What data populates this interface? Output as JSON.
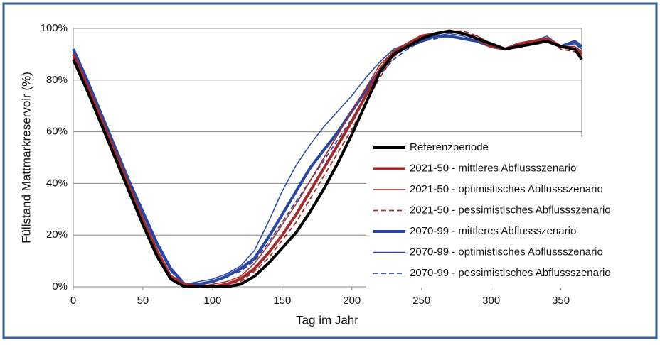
{
  "chart_data": {
    "type": "line",
    "ylabel": "Füllstand Mattmarkreservoir (%)",
    "xlabel": "Tag im Jahr",
    "x": [
      0,
      10,
      20,
      30,
      40,
      50,
      60,
      70,
      80,
      90,
      100,
      110,
      120,
      130,
      140,
      150,
      160,
      170,
      180,
      190,
      200,
      210,
      220,
      230,
      240,
      250,
      260,
      270,
      280,
      290,
      300,
      310,
      320,
      330,
      340,
      350,
      360,
      365
    ],
    "xlim": [
      0,
      365
    ],
    "xticks": [
      0,
      50,
      100,
      150,
      200,
      250,
      300,
      350
    ],
    "ylim": [
      0,
      100
    ],
    "yticks": [
      {
        "value": 0,
        "label": "0%"
      },
      {
        "value": 20,
        "label": "20%"
      },
      {
        "value": 40,
        "label": "40%"
      },
      {
        "value": 60,
        "label": "60%"
      },
      {
        "value": 80,
        "label": "80%"
      },
      {
        "value": 100,
        "label": "100%"
      }
    ],
    "grid": true,
    "legend": "right",
    "series": [
      {
        "name": "Referenzperiode",
        "color": "#000000",
        "line_width": 4,
        "line_style": "solid",
        "values": [
          88,
          76,
          63,
          50,
          37,
          24,
          12,
          3,
          0,
          0,
          0,
          0,
          1,
          4,
          9,
          15,
          21,
          29,
          38,
          48,
          59,
          71,
          83,
          90,
          93,
          96,
          98,
          99,
          98,
          96,
          94,
          92,
          93,
          94,
          95,
          93,
          92,
          88
        ]
      },
      {
        "name": "2021-50 - mittleres Abflussszenario",
        "color": "#a32a2a",
        "line_width": 4,
        "line_style": "solid",
        "values": [
          90,
          78,
          65,
          52,
          39,
          26,
          14,
          4,
          1,
          0,
          0,
          1,
          3,
          7,
          13,
          20,
          28,
          37,
          46,
          55,
          64,
          74,
          84,
          91,
          94,
          97,
          98,
          99,
          98,
          96,
          93,
          92,
          94,
          95,
          96,
          93,
          92,
          90
        ]
      },
      {
        "name": "2021-50 - optimistisches Abflussszenario",
        "color": "#a32a2a",
        "line_width": 1.5,
        "line_style": "solid",
        "values": [
          89,
          77,
          64,
          51,
          38,
          25,
          13,
          4,
          1,
          0,
          1,
          2,
          4,
          9,
          16,
          24,
          32,
          41,
          50,
          59,
          68,
          77,
          86,
          91,
          94,
          97,
          98,
          99,
          98,
          97,
          94,
          92,
          94,
          95,
          96,
          93,
          93,
          91
        ]
      },
      {
        "name": "2021-50 - pessimistisches Abflussszenario",
        "color": "#a32a2a",
        "line_width": 1.8,
        "line_style": "dashed",
        "values": [
          89,
          77,
          64,
          51,
          38,
          25,
          13,
          4,
          1,
          0,
          0,
          1,
          2,
          6,
          11,
          18,
          25,
          34,
          43,
          52,
          61,
          71,
          81,
          89,
          93,
          96,
          98,
          99,
          99,
          97,
          94,
          92,
          93,
          95,
          96,
          92,
          91,
          89
        ]
      },
      {
        "name": "2070-99 - mittleres Abflussszenario",
        "color": "#2a46a3",
        "line_width": 4,
        "line_style": "solid",
        "values": [
          92,
          80,
          67,
          54,
          41,
          29,
          17,
          7,
          1,
          1,
          2,
          4,
          7,
          11,
          19,
          28,
          37,
          46,
          53,
          60,
          68,
          76,
          84,
          90,
          93,
          95,
          97,
          97,
          96,
          95,
          93,
          92,
          94,
          95,
          96,
          93,
          95,
          93
        ]
      },
      {
        "name": "2070-99 - optimistisches Abflussszenario",
        "color": "#2a46a3",
        "line_width": 1.5,
        "line_style": "solid",
        "values": [
          91,
          79,
          66,
          53,
          40,
          28,
          16,
          6,
          1,
          2,
          3,
          5,
          8,
          14,
          25,
          37,
          47,
          55,
          62,
          68,
          74,
          81,
          87,
          92,
          94,
          96,
          97,
          98,
          97,
          95,
          93,
          92,
          94,
          95,
          97,
          93,
          94,
          92
        ]
      },
      {
        "name": "2070-99 - pessimistisches Abflussszenario",
        "color": "#2a46a3",
        "line_width": 1.8,
        "line_style": "dashed",
        "values": [
          91,
          79,
          66,
          53,
          40,
          28,
          16,
          6,
          1,
          1,
          2,
          4,
          6,
          10,
          17,
          25,
          33,
          41,
          49,
          57,
          65,
          74,
          82,
          88,
          92,
          95,
          96,
          97,
          96,
          95,
          93,
          92,
          94,
          95,
          96,
          93,
          94,
          92
        ]
      }
    ]
  }
}
